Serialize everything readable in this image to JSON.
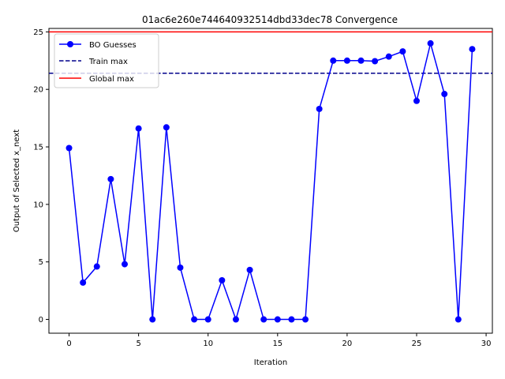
{
  "chart_data": {
    "type": "line",
    "title": "01ac6e260e744640932514dbd33dec78 Convergence",
    "xlabel": "Iteration",
    "ylabel": "Output of Selected x_next",
    "xlim": [
      -1.45,
      30.45
    ],
    "ylim": [
      -1.2,
      25.3
    ],
    "xticks": [
      0,
      5,
      10,
      15,
      20,
      25,
      30
    ],
    "yticks": [
      0,
      5,
      10,
      15,
      20,
      25
    ],
    "grid": false,
    "legend_position": "upper left",
    "series": [
      {
        "name": "BO Guesses",
        "style": "solid line with circle markers",
        "color": "#0000ff",
        "x": [
          0,
          1,
          2,
          3,
          4,
          5,
          6,
          7,
          8,
          9,
          10,
          11,
          12,
          13,
          14,
          15,
          16,
          17,
          18,
          19,
          20,
          21,
          22,
          23,
          24,
          25,
          26,
          27,
          28,
          29
        ],
        "y": [
          14.9,
          3.2,
          4.6,
          12.2,
          4.8,
          16.6,
          0.0,
          16.7,
          4.5,
          0.0,
          0.0,
          3.4,
          0.0,
          4.3,
          0.0,
          0.0,
          0.0,
          0.0,
          18.3,
          22.5,
          22.5,
          22.5,
          22.45,
          22.85,
          23.3,
          19.0,
          24.0,
          19.6,
          0.0,
          23.5
        ]
      },
      {
        "name": "Train max",
        "style": "dashed horizontal line",
        "color": "#00008b",
        "y": 21.4
      },
      {
        "name": "Global max",
        "style": "solid horizontal line",
        "color": "#ff0000",
        "y": 25.0
      }
    ]
  }
}
